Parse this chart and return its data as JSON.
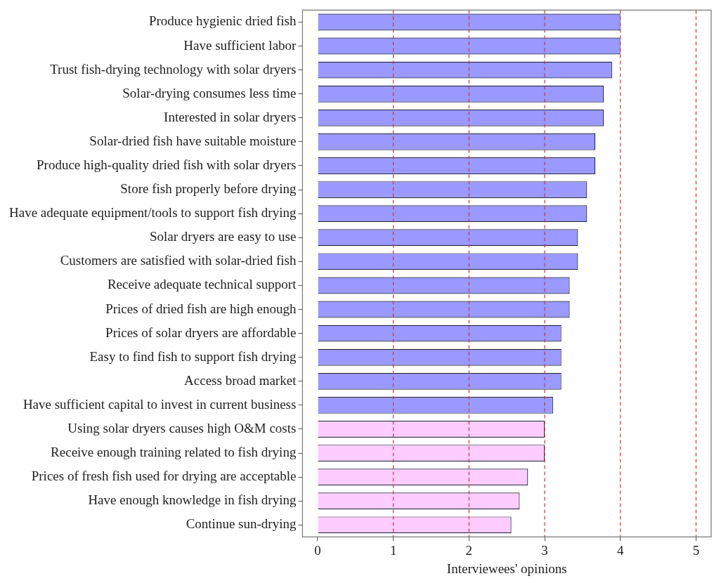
{
  "chart_data": {
    "type": "bar",
    "orientation": "horizontal",
    "xlabel": "Interviewees' opinions",
    "categories": [
      "Produce hygienic dried fish",
      "Have sufficient labor",
      "Trust fish-drying technology with solar dryers",
      "Solar-drying consumes less time",
      "Interested in solar dryers",
      "Solar-dried fish have suitable moisture",
      "Produce high-quality dried fish with solar dryers",
      "Store fish properly before drying",
      "Have adequate equipment/tools to support fish drying",
      "Solar dryers are easy to use",
      "Customers are satisfied with solar-dried fish",
      "Receive adequate technical support",
      "Prices of dried fish are high enough",
      "Prices of solar dryers are affordable",
      "Easy to find fish to support fish drying",
      "Access broad market",
      "Have sufficient capital to invest in current business",
      "Using solar dryers causes high O&M costs",
      "Receive enough training related to fish drying",
      "Prices of fresh fish used for drying are acceptable",
      "Have enough knowledge in fish drying",
      "Continue sun-drying"
    ],
    "values": [
      4.0,
      4.0,
      3.89,
      3.78,
      3.78,
      3.67,
      3.67,
      3.56,
      3.56,
      3.44,
      3.44,
      3.33,
      3.33,
      3.22,
      3.22,
      3.22,
      3.11,
      3.0,
      3.0,
      2.78,
      2.67,
      2.56
    ],
    "colors": [
      "#9999ff",
      "#9999ff",
      "#9999ff",
      "#9999ff",
      "#9999ff",
      "#9999ff",
      "#9999ff",
      "#9999ff",
      "#9999ff",
      "#9999ff",
      "#9999ff",
      "#9999ff",
      "#9999ff",
      "#9999ff",
      "#9999ff",
      "#9999ff",
      "#9999ff",
      "#ffccff",
      "#ffccff",
      "#ffccff",
      "#ffccff",
      "#ffccff"
    ],
    "xlim": [
      -0.2,
      5.2
    ],
    "xticks": [
      0,
      1,
      2,
      3,
      4,
      5
    ],
    "ref_lines": [
      {
        "axis": "x",
        "value": 1,
        "color": "#cc3333",
        "line_style": "dashed"
      },
      {
        "axis": "x",
        "value": 2,
        "color": "#cc3333",
        "line_style": "dashed"
      },
      {
        "axis": "x",
        "value": 3,
        "color": "#cc3333",
        "line_style": "dashed"
      },
      {
        "axis": "x",
        "value": 4,
        "color": "#cc3333",
        "line_style": "dashed"
      },
      {
        "axis": "x",
        "value": 5,
        "color": "#cc3333",
        "line_style": "dashed"
      }
    ],
    "grid": false,
    "legend": false
  }
}
